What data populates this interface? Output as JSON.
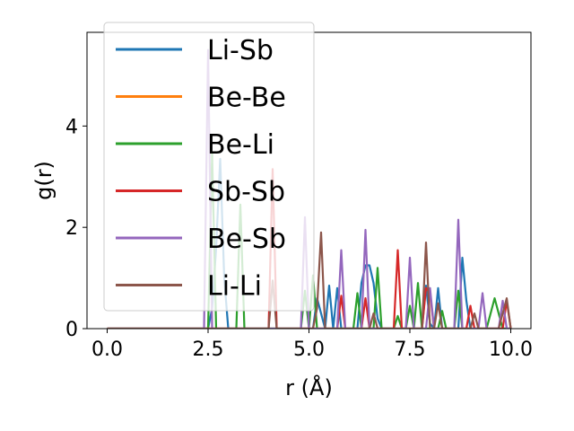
{
  "chart_data": {
    "type": "line",
    "xlabel": "r (Å)",
    "ylabel": "g(r)",
    "xlim": [
      -0.5,
      10.5
    ],
    "ylim": [
      0,
      5.85
    ],
    "xticks": [
      0.0,
      2.5,
      5.0,
      7.5,
      10.0
    ],
    "xtick_labels": [
      "0.0",
      "2.5",
      "5.0",
      "7.5",
      "10.0"
    ],
    "yticks": [
      0,
      2,
      4
    ],
    "ytick_labels": [
      "0",
      "2",
      "4"
    ],
    "grid": false,
    "legend_position": "top-left",
    "series": [
      {
        "name": "Li-Sb",
        "color": "#1f77b4",
        "points": [
          [
            0,
            0
          ],
          [
            2.5,
            0
          ],
          [
            2.6,
            0.4
          ],
          [
            2.7,
            1.6
          ],
          [
            2.8,
            3.35
          ],
          [
            2.9,
            1.0
          ],
          [
            3.0,
            0
          ],
          [
            5.1,
            0
          ],
          [
            5.2,
            0.6
          ],
          [
            5.3,
            0.3
          ],
          [
            5.4,
            0
          ],
          [
            5.5,
            0.85
          ],
          [
            5.6,
            0
          ],
          [
            5.7,
            0.8
          ],
          [
            5.8,
            0
          ],
          [
            6.2,
            0
          ],
          [
            6.3,
            0.9
          ],
          [
            6.4,
            1.25
          ],
          [
            6.5,
            1.25
          ],
          [
            6.6,
            0.9
          ],
          [
            6.7,
            0.2
          ],
          [
            6.8,
            0
          ],
          [
            7.8,
            0
          ],
          [
            7.9,
            0.85
          ],
          [
            8.0,
            0.1
          ],
          [
            8.1,
            0
          ],
          [
            8.2,
            0.8
          ],
          [
            8.3,
            0
          ],
          [
            8.7,
            0
          ],
          [
            8.8,
            1.4
          ],
          [
            8.9,
            0.55
          ],
          [
            9.0,
            0
          ],
          [
            9.9,
            0
          ],
          [
            10.0,
            0
          ]
        ]
      },
      {
        "name": "Be-Be",
        "color": "#ff7f0e",
        "points": [
          [
            0,
            0
          ],
          [
            10.0,
            0
          ]
        ]
      },
      {
        "name": "Be-Li",
        "color": "#2ca02c",
        "points": [
          [
            0,
            0
          ],
          [
            2.5,
            0
          ],
          [
            2.6,
            3.45
          ],
          [
            2.7,
            0
          ],
          [
            3.2,
            0
          ],
          [
            3.3,
            2.45
          ],
          [
            3.4,
            0
          ],
          [
            4.8,
            0
          ],
          [
            4.9,
            0.75
          ],
          [
            5.0,
            0
          ],
          [
            5.1,
            1.05
          ],
          [
            5.2,
            0
          ],
          [
            6.1,
            0
          ],
          [
            6.2,
            0.7
          ],
          [
            6.3,
            0
          ],
          [
            6.6,
            0
          ],
          [
            6.7,
            1.2
          ],
          [
            6.8,
            0
          ],
          [
            7.1,
            0
          ],
          [
            7.2,
            0.25
          ],
          [
            7.3,
            0
          ],
          [
            7.4,
            0
          ],
          [
            7.5,
            0.45
          ],
          [
            7.6,
            0
          ],
          [
            7.7,
            0.9
          ],
          [
            7.8,
            0
          ],
          [
            8.2,
            0
          ],
          [
            8.3,
            0.35
          ],
          [
            8.4,
            0
          ],
          [
            8.6,
            0
          ],
          [
            8.7,
            0.75
          ],
          [
            8.8,
            0
          ],
          [
            9.4,
            0
          ],
          [
            9.5,
            0.3
          ],
          [
            9.6,
            0.6
          ],
          [
            9.7,
            0.3
          ],
          [
            9.8,
            0
          ],
          [
            10.0,
            0
          ]
        ]
      },
      {
        "name": "Sb-Sb",
        "color": "#d62728",
        "points": [
          [
            0,
            0
          ],
          [
            4.0,
            0
          ],
          [
            4.1,
            3.15
          ],
          [
            4.2,
            0
          ],
          [
            5.7,
            0
          ],
          [
            5.8,
            0.65
          ],
          [
            5.9,
            0
          ],
          [
            6.3,
            0
          ],
          [
            6.4,
            0.6
          ],
          [
            6.5,
            0
          ],
          [
            7.1,
            0
          ],
          [
            7.2,
            1.55
          ],
          [
            7.3,
            0
          ],
          [
            7.8,
            0
          ],
          [
            7.9,
            0.8
          ],
          [
            8.0,
            0.7
          ],
          [
            8.1,
            0
          ],
          [
            8.9,
            0
          ],
          [
            9.0,
            0.45
          ],
          [
            9.1,
            0
          ],
          [
            9.8,
            0
          ],
          [
            9.9,
            0.55
          ],
          [
            10.0,
            0
          ]
        ]
      },
      {
        "name": "Be-Sb",
        "color": "#9467bd",
        "points": [
          [
            0,
            0
          ],
          [
            2.4,
            0
          ],
          [
            2.5,
            5.5
          ],
          [
            2.6,
            0
          ],
          [
            4.8,
            0
          ],
          [
            4.9,
            2.2
          ],
          [
            5.0,
            0
          ],
          [
            5.7,
            0
          ],
          [
            5.8,
            1.55
          ],
          [
            5.9,
            0
          ],
          [
            6.3,
            0
          ],
          [
            6.4,
            1.95
          ],
          [
            6.5,
            0
          ],
          [
            7.4,
            0
          ],
          [
            7.5,
            1.4
          ],
          [
            7.6,
            0
          ],
          [
            7.9,
            0
          ],
          [
            8.0,
            0.8
          ],
          [
            8.1,
            0
          ],
          [
            8.6,
            0
          ],
          [
            8.7,
            2.15
          ],
          [
            8.8,
            0
          ],
          [
            9.2,
            0
          ],
          [
            9.3,
            0.7
          ],
          [
            9.4,
            0
          ],
          [
            9.7,
            0
          ],
          [
            9.8,
            0.55
          ],
          [
            9.9,
            0
          ],
          [
            10.0,
            0
          ]
        ]
      },
      {
        "name": "Li-Li",
        "color": "#8c564b",
        "points": [
          [
            0,
            0
          ],
          [
            4.0,
            0
          ],
          [
            4.1,
            0.95
          ],
          [
            4.2,
            0
          ],
          [
            5.1,
            0
          ],
          [
            5.2,
            0.4
          ],
          [
            5.3,
            1.9
          ],
          [
            5.4,
            0
          ],
          [
            6.5,
            0
          ],
          [
            6.6,
            0.3
          ],
          [
            6.7,
            0
          ],
          [
            7.8,
            0
          ],
          [
            7.9,
            1.7
          ],
          [
            8.0,
            0
          ],
          [
            8.1,
            0
          ],
          [
            8.2,
            0.5
          ],
          [
            8.3,
            0
          ],
          [
            9.0,
            0
          ],
          [
            9.1,
            0.3
          ],
          [
            9.2,
            0
          ],
          [
            9.7,
            0
          ],
          [
            9.8,
            0.3
          ],
          [
            9.9,
            0.6
          ],
          [
            10.0,
            0
          ]
        ]
      }
    ]
  }
}
